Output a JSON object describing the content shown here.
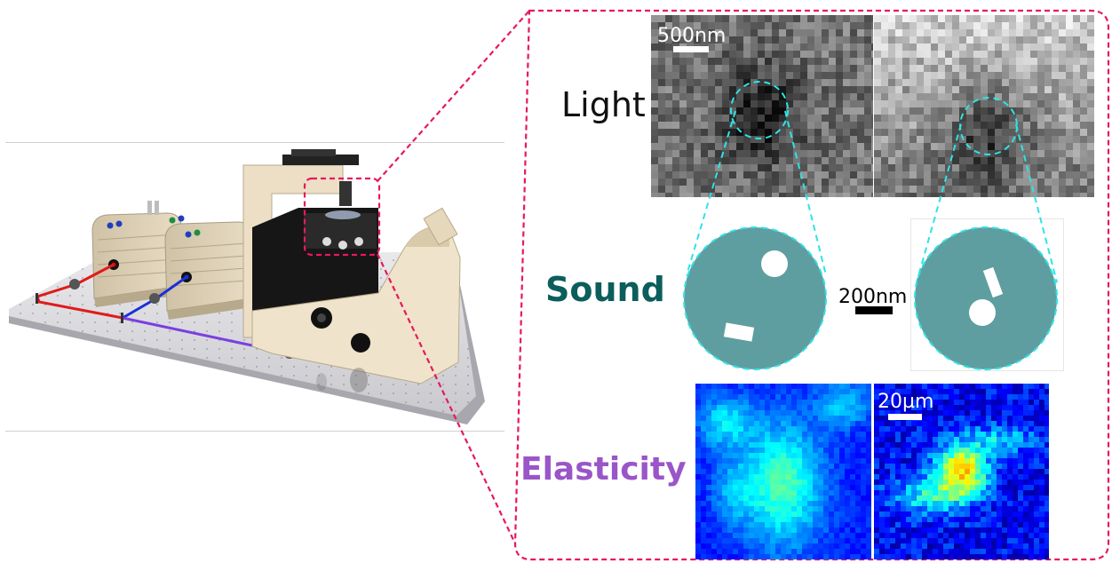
{
  "labels": {
    "light": "Light",
    "sound": "Sound",
    "elasticity": "Elasticity"
  },
  "scale_bars": {
    "light": "500nm",
    "sound": "200nm",
    "elasticity": "20µm"
  },
  "colors": {
    "callout_border": "#e8195a",
    "zoom_lines": "#2ee3e6",
    "sound_disk": "#5f9ea0",
    "sound_label": "#0b5e5c",
    "elasticity_label": "#9a55c8",
    "laser_red": "#e01b1b",
    "laser_blue": "#1a2fd8",
    "laser_violet": "#7b3fe0"
  }
}
